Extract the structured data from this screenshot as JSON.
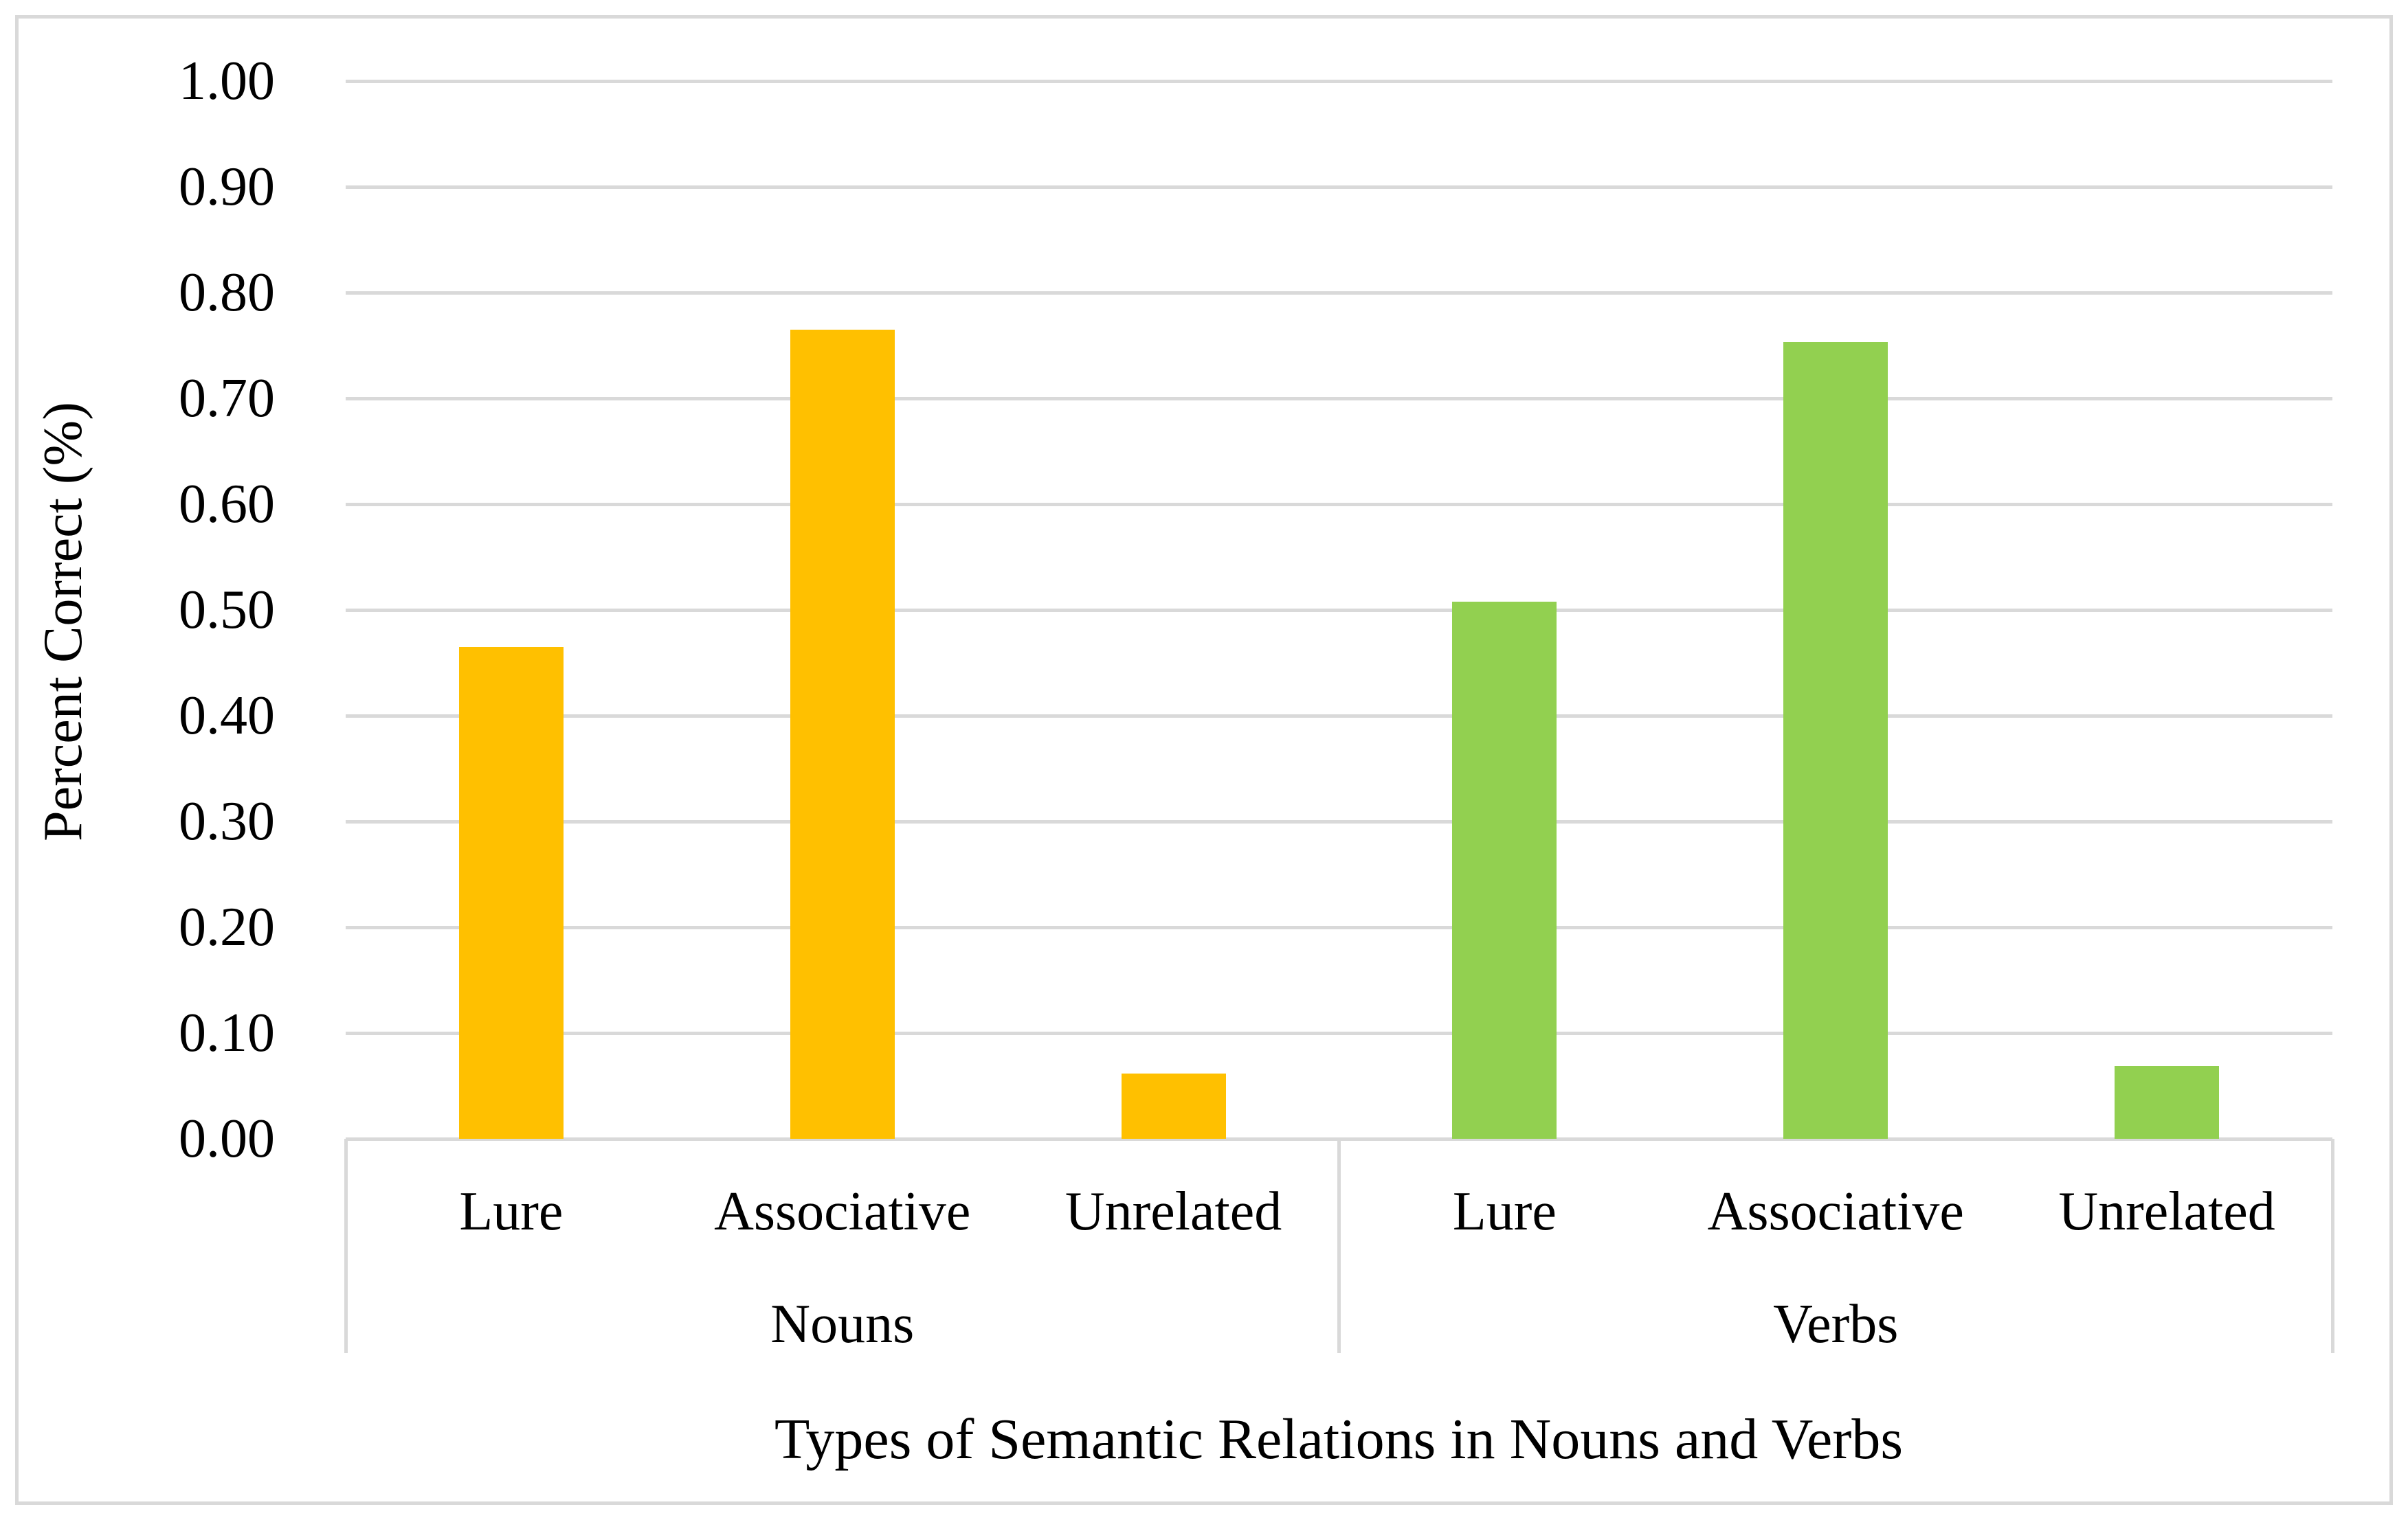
{
  "figure": {
    "background": "#ffffff",
    "frame_color": "#d9d9d9",
    "gridline_color": "#d9d9d9",
    "axis_color": "#d9d9d9"
  },
  "chart_data": {
    "type": "bar",
    "title": "",
    "xlabel": "Types of Semantic Relations in Nouns and Verbs",
    "ylabel": "Percent Correct (%)",
    "categories": [
      "Lure",
      "Associative",
      "Unrelated"
    ],
    "series": [
      {
        "name": "Nouns",
        "color": "#FFC000",
        "values": [
          0.465,
          0.765,
          0.062
        ]
      },
      {
        "name": "Verbs",
        "color": "#92D050",
        "values": [
          0.508,
          0.753,
          0.069
        ]
      }
    ],
    "ylim": [
      0,
      1
    ],
    "ytick_step": 0.1,
    "yticks": [
      "0.00",
      "0.10",
      "0.20",
      "0.30",
      "0.40",
      "0.50",
      "0.60",
      "0.70",
      "0.80",
      "0.90",
      "1.00"
    ],
    "grid": true,
    "legend": false,
    "group_row_labels": [
      "Nouns",
      "Verbs"
    ]
  }
}
